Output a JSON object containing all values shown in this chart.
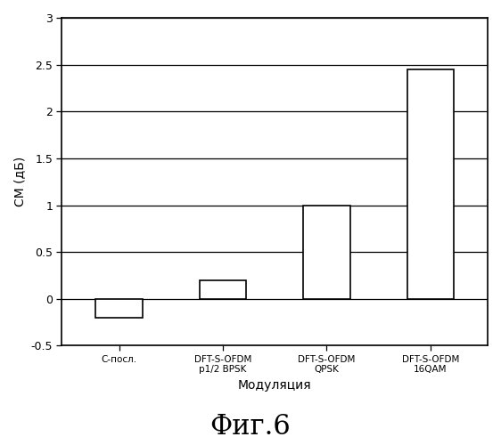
{
  "categories": [
    "С-посл.",
    "DFT-S-OFDM\np1/2 BPSK",
    "DFT-S-OFDM\nQPSK",
    "DFT-S-OFDM\n16QAM"
  ],
  "values": [
    -0.2,
    0.2,
    1.0,
    2.45
  ],
  "xlabel": "Модуляция",
  "ylabel": "СМ (дБ)",
  "ylim": [
    -0.5,
    3.0
  ],
  "yticks": [
    -0.5,
    0.0,
    0.5,
    1.0,
    1.5,
    2.0,
    2.5,
    3.0
  ],
  "ytick_labels": [
    "-0.5",
    "0",
    "0.5",
    "1",
    "1.5",
    "2",
    "2.5",
    "3"
  ],
  "caption": "Фиг.6",
  "bar_color": "white",
  "bar_edgecolor": "black",
  "background_color": "white",
  "fig_width": 5.62,
  "fig_height": 5.0,
  "dpi": 100,
  "bar_width": 0.45,
  "xlim_left": -0.55,
  "xlim_right": 3.55
}
